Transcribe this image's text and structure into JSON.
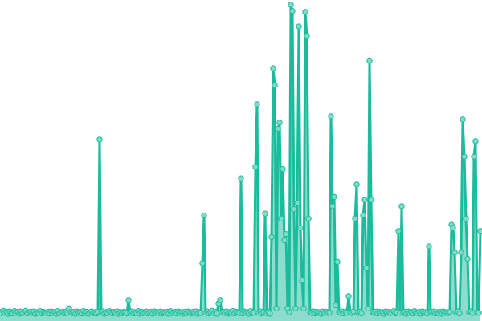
{
  "chart_data": {
    "type": "line",
    "title": "",
    "xlabel": "",
    "ylabel": "",
    "axes_visible": false,
    "grid": false,
    "legend": "none",
    "markers": true,
    "area_fill": true,
    "x_range": [
      0,
      299
    ],
    "ylim": [
      0,
      100
    ],
    "colors": {
      "line": "#1abc9c",
      "marker_fill": "#7fdcc6",
      "area": "#1abc9c"
    },
    "values": [
      0.8,
      0.5,
      1.2,
      0.6,
      0.9,
      0.3,
      1.0,
      0.7,
      0.4,
      1.1,
      0.6,
      0.9,
      0.3,
      1.0,
      0.5,
      0.8,
      1.2,
      0.4,
      0.7,
      0.9,
      0.5,
      1.0,
      0.3,
      0.8,
      0.6,
      1.1,
      0.4,
      0.9,
      0.7,
      0.5,
      0.9,
      0.4,
      1.0,
      0.6,
      0.8,
      0.3,
      1.1,
      0.5,
      0.7,
      0.9,
      0.4,
      1.0,
      0.6,
      2.0,
      0.8,
      0.5,
      0.9,
      0.3,
      1.0,
      0.6,
      0.8,
      0.4,
      1.1,
      0.6,
      0.9,
      0.3,
      0.7,
      1.0,
      0.5,
      0.8,
      0.4,
      0.9,
      56.5,
      0.6,
      1.0,
      0.3,
      0.8,
      0.5,
      1.1,
      0.7,
      0.4,
      0.9,
      0.6,
      1.0,
      0.3,
      0.8,
      0.5,
      0.9,
      0.7,
      0.4,
      4.7,
      0.6,
      1.0,
      0.4,
      0.8,
      0.6,
      1.1,
      0.3,
      0.9,
      0.5,
      0.8,
      1.0,
      0.4,
      0.7,
      0.9,
      0.3,
      1.0,
      0.6,
      0.8,
      0.5,
      1.0,
      0.4,
      0.8,
      0.6,
      0.9,
      0.3,
      1.1,
      0.5,
      0.7,
      0.9,
      0.4,
      1.0,
      0.6,
      0.8,
      0.3,
      0.9,
      0.5,
      1.0,
      0.7,
      0.4,
      0.9,
      0.6,
      1.0,
      0.3,
      0.8,
      0.5,
      16.6,
      32,
      0.6,
      1.0,
      0.4,
      0.8,
      1.2,
      0.5,
      0.9,
      0.3,
      3.6,
      4.7,
      0.7,
      0.9,
      0.5,
      1.0,
      0.3,
      0.8,
      0.6,
      1.1,
      0.4,
      0.9,
      0.7,
      0.5,
      44,
      0.4,
      1.0,
      0.6,
      0.8,
      0.3,
      1.1,
      0.5,
      0.7,
      47.7,
      67.9,
      0.6,
      1.0,
      0.4,
      0.8,
      32.6,
      0.5,
      0.9,
      0.3,
      25,
      79.5,
      74,
      2,
      60,
      62,
      31,
      47,
      24,
      26,
      2,
      0.8,
      100,
      98,
      34,
      2,
      36,
      93,
      28,
      11,
      2,
      97.7,
      90,
      31,
      0.8,
      0.5,
      1.0,
      0.4,
      0.9,
      0.6,
      0.8,
      0.3,
      1.0,
      0.6,
      0.9,
      0.5,
      0.7,
      64,
      35,
      38,
      3,
      17,
      0.8,
      0.5,
      1.0,
      0.4,
      0.9,
      0.6,
      6,
      0.8,
      0.5,
      1.0,
      31,
      42,
      0.6,
      0.9,
      0.4,
      32,
      37,
      15,
      2,
      82,
      37,
      0.8,
      0.5,
      1.0,
      0.4,
      0.9,
      0.6,
      0.8,
      0.3,
      1.0,
      0.6,
      0.9,
      0.5,
      0.7,
      1.1,
      0.4,
      0.8,
      27,
      0.6,
      35,
      0.5,
      0.9,
      0.3,
      1.0,
      0.6,
      0.8,
      0.4,
      1.1,
      0.7,
      0.5,
      0.9,
      0.3,
      1.0,
      0.6,
      0.8,
      0.4,
      22,
      0.9,
      0.6,
      1.0,
      0.4,
      0.8,
      0.5,
      0.9,
      0.3,
      1.0,
      0.6,
      0.8,
      0.5,
      0.9,
      29,
      28,
      20,
      0.6,
      1.0,
      0.4,
      20,
      63,
      51,
      31,
      18,
      0.7,
      1.0,
      0.5,
      51,
      56,
      0.8,
      0.6,
      27
    ]
  }
}
